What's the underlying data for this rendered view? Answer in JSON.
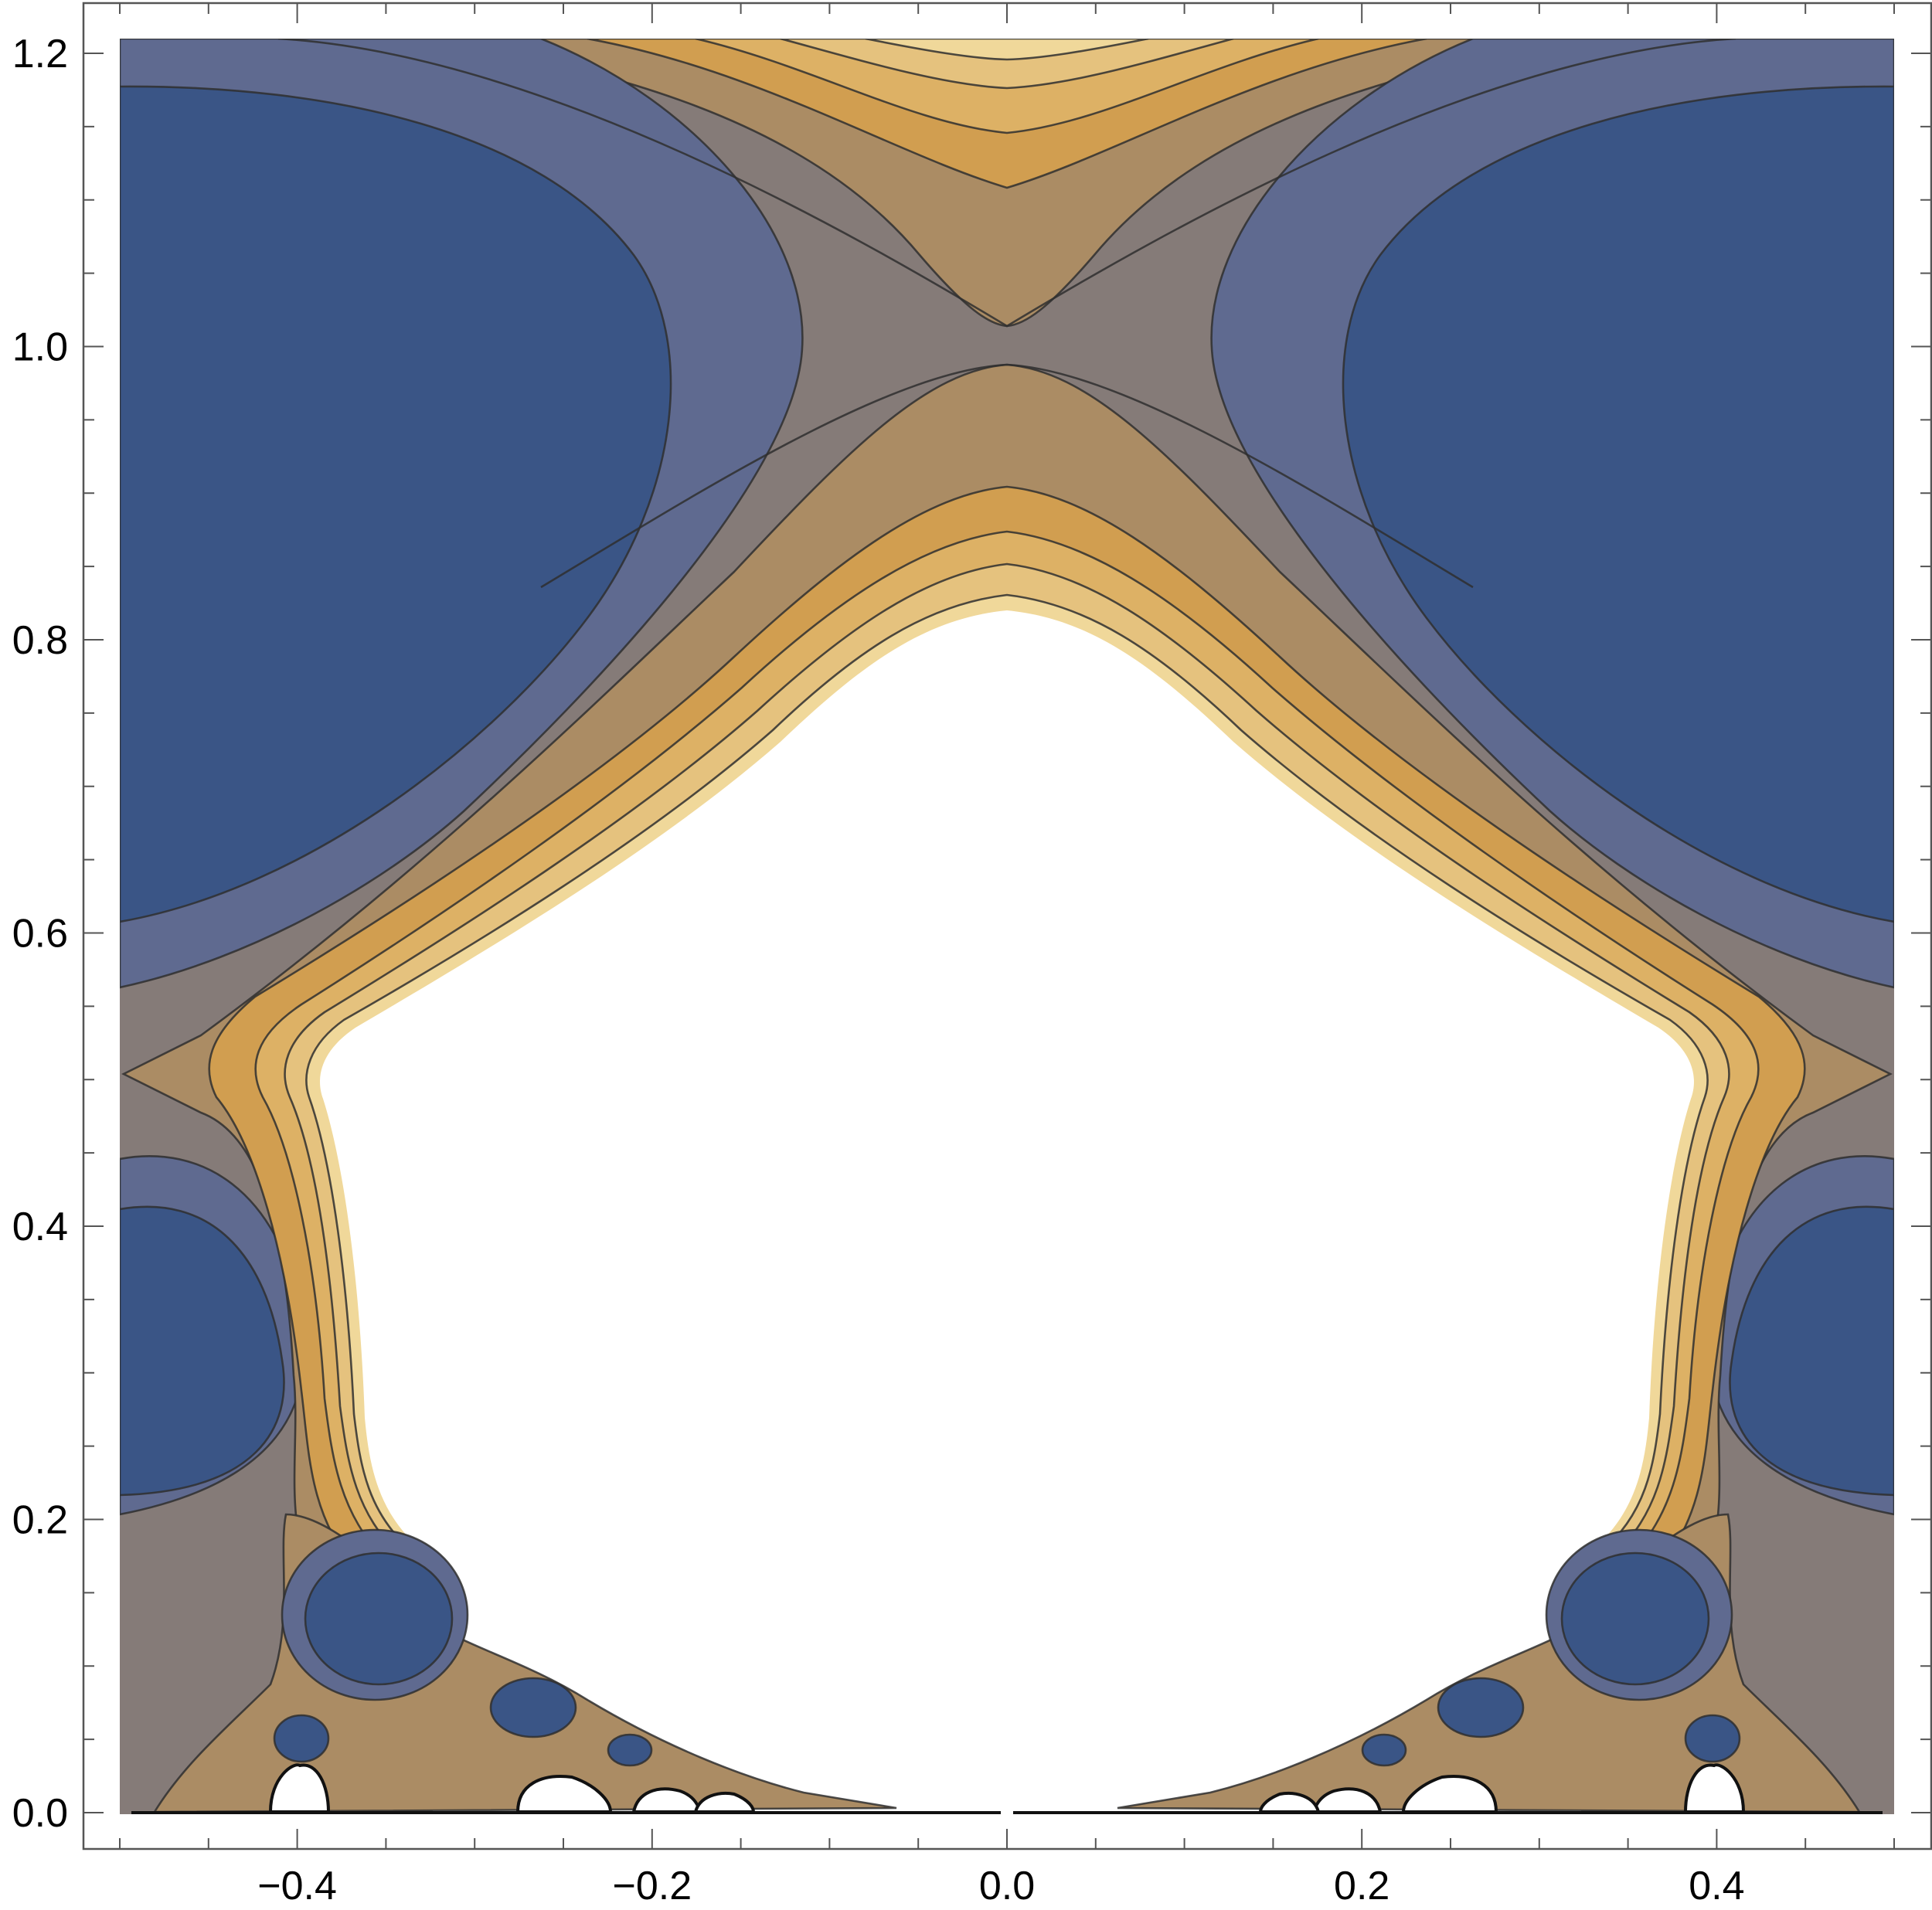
{
  "chart_data": {
    "type": "contour",
    "title": "",
    "xlabel": "",
    "ylabel": "",
    "xlim": [
      -0.5,
      0.5
    ],
    "ylim": [
      0.0,
      1.21
    ],
    "grid": false,
    "legend": "none",
    "x_ticks": [
      {
        "value": -0.4,
        "label": "−0.4"
      },
      {
        "value": -0.2,
        "label": "−0.2"
      },
      {
        "value": 0.0,
        "label": "0.0"
      },
      {
        "value": 0.2,
        "label": "0.2"
      },
      {
        "value": 0.4,
        "label": "0.4"
      }
    ],
    "y_ticks": [
      {
        "value": 0.0,
        "label": "0.0"
      },
      {
        "value": 0.2,
        "label": "0.2"
      },
      {
        "value": 0.4,
        "label": "0.4"
      },
      {
        "value": 0.6,
        "label": "0.6"
      },
      {
        "value": 0.8,
        "label": "0.8"
      },
      {
        "value": 1.0,
        "label": "1.0"
      },
      {
        "value": 1.2,
        "label": "1.2"
      }
    ],
    "x_minor_step": 0.05,
    "y_minor_step": 0.05,
    "saddle_points": [
      {
        "x": 0.0,
        "y": 1.0
      },
      {
        "x": -0.5,
        "y": 0.5
      },
      {
        "x": 0.5,
        "y": 0.5
      }
    ],
    "minima_regions": [
      {
        "x_center": -0.5,
        "y_center": 0.9
      },
      {
        "x_center": 0.5,
        "y_center": 0.9
      },
      {
        "x_center": -0.5,
        "y_center": 0.3
      },
      {
        "x_center": 0.5,
        "y_center": 0.3
      },
      {
        "x_center": -0.32,
        "y_center": 0.13
      },
      {
        "x_center": 0.32,
        "y_center": 0.13
      }
    ],
    "contour_band_colors": [
      "#3a5586",
      "#5f6a90",
      "#857b78",
      "#ab8c64",
      "#d19e50",
      "#ddb165",
      "#e5c27e",
      "#f0d89a",
      "#ffffff"
    ]
  }
}
